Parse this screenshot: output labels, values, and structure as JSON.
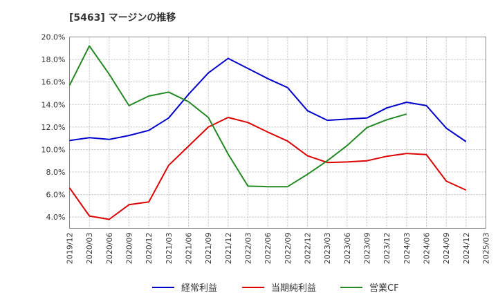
{
  "chart_data": {
    "type": "line",
    "title": "[5463]  マージンの推移",
    "xlabel": "",
    "ylabel": "",
    "ylim": [
      3.0,
      20.0
    ],
    "y_ticks": [
      4.0,
      6.0,
      8.0,
      10.0,
      12.0,
      14.0,
      16.0,
      18.0,
      20.0
    ],
    "y_tick_labels": [
      "4.0%",
      "6.0%",
      "8.0%",
      "10.0%",
      "12.0%",
      "14.0%",
      "16.0%",
      "18.0%",
      "20.0%"
    ],
    "categories": [
      "2019/12",
      "2020/03",
      "2020/06",
      "2020/09",
      "2020/12",
      "2021/03",
      "2021/06",
      "2021/09",
      "2021/12",
      "2022/03",
      "2022/06",
      "2022/09",
      "2022/12",
      "2023/03",
      "2023/06",
      "2023/09",
      "2023/12",
      "2024/03",
      "2024/06",
      "2024/09",
      "2024/12",
      "2025/03"
    ],
    "grid": true,
    "legend_position": "bottom",
    "series": [
      {
        "name": "経常利益",
        "color": "#0000cc",
        "values": [
          10.8,
          11.05,
          10.9,
          11.25,
          11.7,
          12.8,
          14.9,
          16.8,
          18.1,
          17.2,
          16.3,
          15.5,
          13.45,
          12.6,
          12.7,
          12.8,
          13.7,
          14.2,
          13.9,
          11.9,
          10.7,
          null
        ]
      },
      {
        "name": "当期純利益",
        "color": "#dd0000",
        "values": [
          6.6,
          4.1,
          3.8,
          5.1,
          5.35,
          8.6,
          10.3,
          12.0,
          12.85,
          12.4,
          11.55,
          10.75,
          9.45,
          8.85,
          8.9,
          9.0,
          9.4,
          9.65,
          9.55,
          7.2,
          6.4,
          null
        ]
      },
      {
        "name": "営業CF",
        "color": "#228822",
        "values": [
          15.7,
          19.2,
          16.7,
          13.9,
          14.75,
          15.1,
          14.25,
          12.85,
          9.6,
          6.75,
          6.7,
          6.7,
          7.8,
          9.0,
          10.35,
          11.95,
          12.65,
          13.15,
          null,
          null,
          null,
          null
        ]
      }
    ]
  }
}
